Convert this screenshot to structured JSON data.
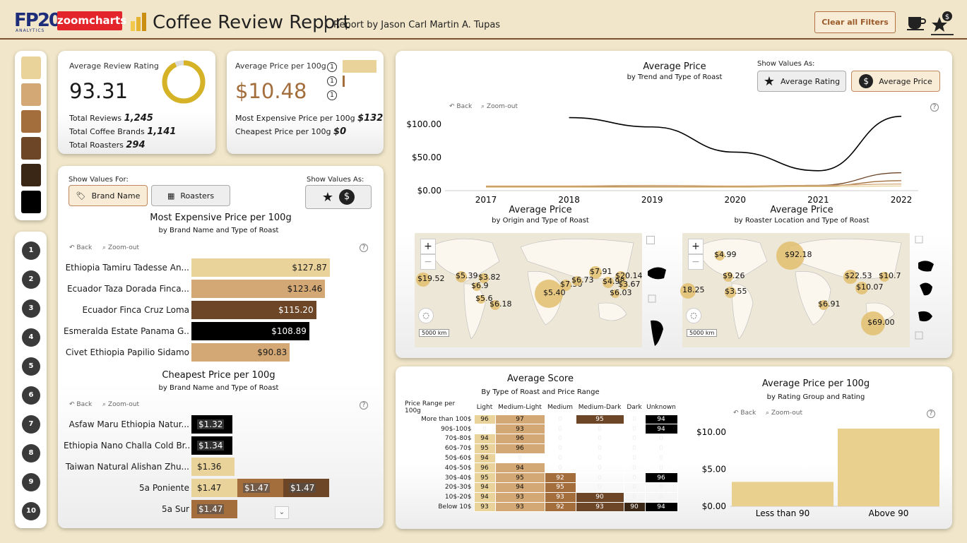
{
  "header": {
    "logo_main": "FP20",
    "logo_sub": "ANALYTICS",
    "zoomcharts": "zoomcharts",
    "title": "Coffee Review Report",
    "subtitle": "Report by Jason Carl Martin A. Tupas",
    "clear_filters": "Clear all Filters"
  },
  "colors": {
    "light": "#e9d39a",
    "medium_light": "#d3a874",
    "medium": "#a46d3c",
    "medium_dark": "#6d4527",
    "dark": "#3b2716",
    "unknown": "#000000"
  },
  "swatches": [
    "#e9d39a",
    "#d3a874",
    "#a46d3c",
    "#6d4527",
    "#3b2716",
    "#000000"
  ],
  "rating_buttons": [
    "1",
    "2",
    "3",
    "4",
    "5",
    "6",
    "7",
    "8",
    "9",
    "10"
  ],
  "kpi_rating": {
    "label": "Average Review Rating",
    "value": "93.31",
    "gauge_fraction": 0.93,
    "lines": [
      {
        "k": "Total Reviews",
        "v": "1,245"
      },
      {
        "k": "Total Coffee Brands",
        "v": "1,141"
      },
      {
        "k": "Total Roasters",
        "v": "294"
      }
    ]
  },
  "kpi_price": {
    "label": "Average Price per 100g",
    "value": "$10.48",
    "lines": [
      {
        "k": "Most Expensive Price per 100g",
        "v": "$132"
      },
      {
        "k": "Cheapest Price per 100g",
        "v": "$0"
      }
    ],
    "legend_marks": [
      "1",
      "1",
      "1"
    ]
  },
  "selectors": {
    "show_values_for": "Show Values For:",
    "brand": "Brand Name",
    "roasters": "Roasters",
    "show_values_as": "Show Values As:",
    "as_rating": "Average Rating",
    "as_price": "Average Price"
  },
  "nav": {
    "back": "Back",
    "zoom_out": "Zoom-out"
  },
  "expensive": {
    "title": "Most Expensive Price per 100g",
    "sub": "by Brand Name and Type of Roast",
    "rows": [
      {
        "label": "Ethiopia Tamiru Tadesse An...",
        "value": 127.87,
        "text": "$127.87",
        "color": "#e9d39a"
      },
      {
        "label": "Ecuador Taza Dorada Finca...",
        "value": 123.46,
        "text": "$123.46",
        "color": "#d3a874"
      },
      {
        "label": "Ecuador Finca Cruz Loma",
        "value": 115.2,
        "text": "$115.20",
        "color": "#6d4527"
      },
      {
        "label": "Esmeralda Estate Panama G...",
        "value": 108.89,
        "text": "$108.89",
        "color": "#000000"
      },
      {
        "label": "Civet Ethiopia Papilio Sidamo",
        "value": 90.83,
        "text": "$90.83",
        "color": "#d3a874"
      }
    ]
  },
  "cheapest": {
    "title": "Cheapest Price per 100g",
    "sub": "by Brand Name and Type of Roast",
    "rows": [
      {
        "label": "Asfaw Maru Ethiopia Natur...",
        "segments": [
          {
            "text": "$1.32",
            "color": "#000000"
          }
        ]
      },
      {
        "label": "Ethiopia Nano Challa Cold Br...",
        "segments": [
          {
            "text": "$1.34",
            "color": "#000000"
          }
        ]
      },
      {
        "label": "Taiwan Natural Alishan Zhu...",
        "segments": [
          {
            "text": "$1.36",
            "color": "#e9d39a"
          }
        ]
      },
      {
        "label": "5a Poniente",
        "segments": [
          {
            "text": "$1.47",
            "color": "#e9d39a"
          },
          {
            "text": "$1.47",
            "color": "#a46d3c"
          },
          {
            "text": "$1.47",
            "color": "#6d4527"
          }
        ]
      },
      {
        "label": "5a Sur",
        "segments": [
          {
            "text": "$1.47",
            "color": "#a46d3c"
          }
        ]
      }
    ]
  },
  "trend": {
    "title": "Average Price",
    "sub": "by Trend and Type of Roast",
    "chart_data": {
      "type": "line",
      "x": [
        "2017",
        "2018",
        "2019",
        "2020",
        "2021",
        "2022"
      ],
      "ylabels": [
        "$100.00",
        "$50.00",
        "$0.00"
      ],
      "ylim": [
        0,
        100
      ],
      "series": [
        {
          "color": "#000000",
          "values": [
            null,
            110,
            96,
            58,
            30,
            112
          ]
        },
        {
          "color": "#6d4527",
          "values": [
            5,
            6,
            6,
            5,
            8,
            27
          ]
        },
        {
          "color": "#a46d3c",
          "values": [
            6,
            6,
            6,
            6,
            7,
            15
          ]
        },
        {
          "color": "#d3a874",
          "values": [
            7,
            7,
            8,
            7,
            8,
            10
          ]
        },
        {
          "color": "#e9d39a",
          "values": [
            5,
            5,
            5,
            5,
            6,
            7
          ]
        }
      ]
    }
  },
  "map_origin": {
    "title": "Average Price",
    "sub": "by Origin and Type of Roast",
    "scale": "5000 km",
    "labels": [
      "$19.52",
      "$5.39",
      "$3.82",
      "$6.9",
      "$5.6",
      "$6.18",
      "$7.91",
      "$20.14",
      "$4.98",
      "$3.67",
      "$7.50",
      "$6.73",
      "$5.40",
      "$6.03"
    ]
  },
  "map_roaster": {
    "title": "Average Price",
    "sub": "by Roaster Location and Type of Roast",
    "scale": "5000 km",
    "labels": [
      "$4.99",
      "$92.18",
      "$9.26",
      "18.25",
      "$3.55",
      "$22.53",
      "$10.7",
      "$10.07",
      "$6.91",
      "$69.00"
    ]
  },
  "score": {
    "title": "Average Score",
    "sub": "By Type of Roast and Price Range",
    "cols": [
      "Price Range per 100g",
      "Light",
      "Medium-Light",
      "Medium",
      "Medium-Dark",
      "Dark",
      "Unknown"
    ],
    "rows": [
      {
        "r": "More than 100$",
        "v": [
          "96",
          "97",
          "0",
          "95",
          "0",
          "94"
        ]
      },
      {
        "r": "90$-100$",
        "v": [
          "0",
          "93",
          "0",
          "0",
          "0",
          "94"
        ]
      },
      {
        "r": "70$-80$",
        "v": [
          "94",
          "96",
          "0",
          "0",
          "0",
          "0"
        ]
      },
      {
        "r": "60$-70$",
        "v": [
          "95",
          "96",
          "0",
          "0",
          "0",
          "0"
        ]
      },
      {
        "r": "50$-60$",
        "v": [
          "94",
          "0",
          "0",
          "0",
          "0",
          "0"
        ]
      },
      {
        "r": "40$-50$",
        "v": [
          "96",
          "94",
          "0",
          "0",
          "0",
          "0"
        ]
      },
      {
        "r": "30$-40$",
        "v": [
          "95",
          "95",
          "92",
          "0",
          "0",
          "96"
        ]
      },
      {
        "r": "20$-30$",
        "v": [
          "94",
          "94",
          "95",
          "0",
          "0",
          "0"
        ]
      },
      {
        "r": "10$-20$",
        "v": [
          "94",
          "93",
          "93",
          "90",
          "0",
          "0"
        ]
      },
      {
        "r": "Below 10$",
        "v": [
          "93",
          "93",
          "92",
          "93",
          "90",
          "94"
        ]
      }
    ]
  },
  "rating_group": {
    "title": "Average Price per 100g",
    "sub": "by Rating Group and Rating",
    "chart_data": {
      "type": "bar",
      "categories": [
        "Less than 90",
        "Above 90"
      ],
      "values": [
        3.3,
        10.5
      ],
      "ylabels": [
        "$10.00",
        "$5.00",
        "$0.00"
      ],
      "ylim": [
        0,
        10.5
      ]
    }
  }
}
